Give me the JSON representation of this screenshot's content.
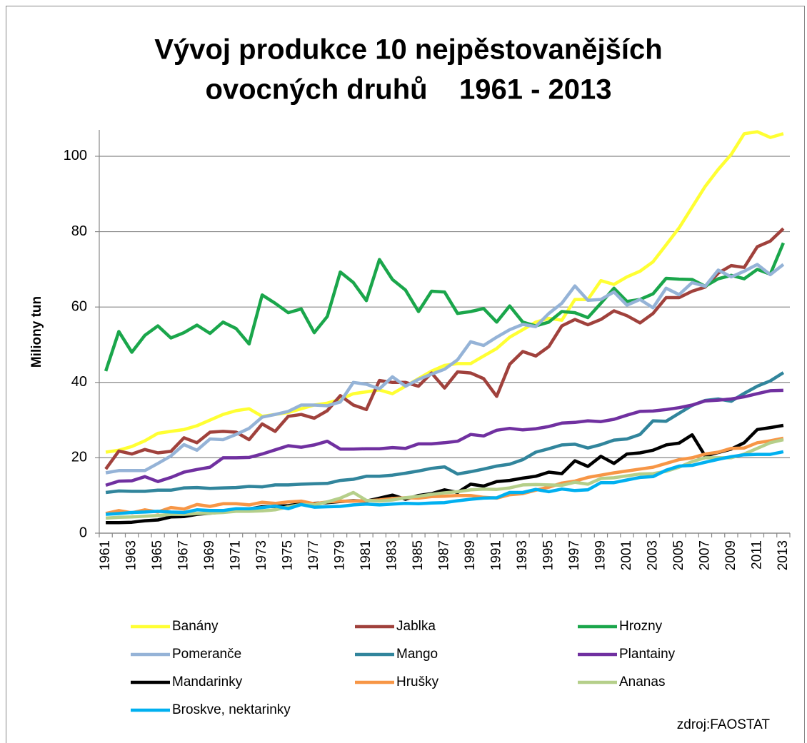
{
  "chart_data": {
    "type": "line",
    "title": [
      "Vývoj produkce 10 nejpěstovanějších",
      "ovocných druhů    1961 - 2013"
    ],
    "y_label": "Miliony tun",
    "source": "zdroj:FAOSTAT",
    "categories": [
      "1961",
      null,
      "1963",
      null,
      "1965",
      null,
      "1967",
      null,
      "1969",
      null,
      "1971",
      null,
      "1973",
      null,
      "1975",
      null,
      "1977",
      null,
      "1979",
      null,
      "1981",
      null,
      "1983",
      null,
      "1985",
      null,
      "1987",
      null,
      "1989",
      null,
      "1991",
      null,
      "1993",
      null,
      "1995",
      null,
      "1997",
      null,
      "1999",
      null,
      "2001",
      null,
      "2003",
      null,
      "2005",
      null,
      "2007",
      null,
      "2009",
      null,
      "2011",
      null,
      "2013"
    ],
    "ylim": [
      0,
      107
    ],
    "yticks": [
      0,
      20,
      40,
      60,
      80,
      100
    ],
    "grid": true,
    "series": [
      {
        "name": "Banány",
        "color": "#ffff33",
        "values": [
          21.5,
          22,
          23,
          24.5,
          26.5,
          27,
          27.5,
          28.5,
          30,
          31.5,
          32.5,
          33,
          31,
          31.5,
          32,
          33,
          34,
          34.5,
          35.5,
          37,
          37.5,
          38,
          37,
          39,
          41,
          43,
          44.5,
          45,
          45,
          47,
          49,
          52,
          54,
          56,
          57,
          56.5,
          62,
          62,
          67,
          66,
          68,
          69.5,
          72,
          76.5,
          81,
          86.5,
          92,
          96.5,
          100.5,
          106,
          106.5,
          105,
          106
        ]
      },
      {
        "name": "Jablka",
        "color": "#a0413c",
        "values": [
          17,
          21.8,
          21,
          22.2,
          21.3,
          21.7,
          25.3,
          24,
          26.8,
          27,
          26.8,
          24.8,
          29,
          27,
          31,
          31.5,
          30.5,
          32.5,
          36.5,
          34,
          32.8,
          40.5,
          40,
          40,
          39,
          42.5,
          38.5,
          42.8,
          42.5,
          41,
          36.3,
          44.8,
          48.2,
          47,
          49.5,
          55,
          56.7,
          55.3,
          56.7,
          59,
          57.7,
          55.8,
          58.3,
          62.5,
          62.5,
          64.2,
          65.3,
          69,
          71,
          70.5,
          76,
          77.5,
          80.8
        ]
      },
      {
        "name": "Hrozny",
        "color": "#1aa64b",
        "values": [
          43,
          53.5,
          48,
          52.5,
          55,
          51.8,
          53.2,
          55.2,
          53,
          56,
          54.3,
          50.2,
          63.2,
          61,
          58.5,
          59.5,
          53.2,
          57.5,
          69.3,
          66.5,
          61.7,
          72.6,
          67.3,
          64.5,
          58.8,
          64.2,
          64,
          58.3,
          58.8,
          59.6,
          56,
          60.3,
          56,
          55,
          56,
          58.8,
          58.5,
          57.2,
          61,
          65,
          61.5,
          62,
          63.5,
          67.6,
          67.4,
          67.3,
          65.5,
          67.5,
          68.4,
          67.5,
          70,
          68.7,
          77
        ]
      },
      {
        "name": "Pomeranče",
        "color": "#95b3d7",
        "values": [
          16,
          16.6,
          16.6,
          16.6,
          18.5,
          20.5,
          23.5,
          22,
          25,
          24.8,
          26.2,
          27.8,
          30.8,
          31.5,
          32.3,
          34,
          34,
          33.8,
          34.8,
          40,
          39.5,
          38.3,
          41.5,
          39,
          40.8,
          42.2,
          43.5,
          46,
          50.8,
          49.8,
          52,
          54,
          55.4,
          54.8,
          58.3,
          61,
          65.6,
          61.8,
          62,
          64,
          60.5,
          62,
          59.8,
          65,
          63.3,
          66.5,
          65.5,
          69.8,
          68,
          69.5,
          71.3,
          68.6,
          71.3
        ]
      },
      {
        "name": "Mango",
        "color": "#31859c",
        "values": [
          10.8,
          11.2,
          11.1,
          11.1,
          11.4,
          11.4,
          12,
          12.1,
          11.9,
          12,
          12.1,
          12.4,
          12.3,
          12.8,
          12.8,
          13,
          13.1,
          13.2,
          14,
          14.3,
          15.1,
          15.1,
          15.4,
          15.9,
          16.5,
          17.2,
          17.6,
          15.7,
          16.3,
          17,
          17.8,
          18.3,
          19.5,
          21.5,
          22.4,
          23.4,
          23.6,
          22.6,
          23.5,
          24.7,
          25,
          26.2,
          29.8,
          29.7,
          31.8,
          33.9,
          35.2,
          35.6,
          35,
          37.1,
          39,
          40.4,
          42.6
        ]
      },
      {
        "name": "Plantainy",
        "color": "#7030a0",
        "values": [
          12.7,
          13.8,
          13.9,
          15,
          13.7,
          14.8,
          16.2,
          16.9,
          17.5,
          20,
          20,
          20.1,
          21,
          22.1,
          23.2,
          22.8,
          23.4,
          24.4,
          22.3,
          22.3,
          22.4,
          22.4,
          22.7,
          22.5,
          23.7,
          23.7,
          24,
          24.4,
          26.2,
          25.8,
          27.3,
          27.8,
          27.4,
          27.7,
          28.3,
          29.2,
          29.4,
          29.8,
          29.6,
          30.2,
          31.3,
          32.3,
          32.4,
          32.8,
          33.3,
          34,
          35.1,
          35.3,
          35.6,
          36.2,
          37,
          37.8,
          37.9
        ]
      },
      {
        "name": "Mandarinky",
        "color": "#000000",
        "values": [
          2.8,
          2.8,
          2.9,
          3.3,
          3.5,
          4.3,
          4.4,
          5,
          5.3,
          5.6,
          6,
          6.4,
          7,
          7.1,
          7.3,
          7.8,
          7.9,
          8.1,
          8.4,
          8.6,
          8.5,
          9.3,
          10.1,
          9,
          10,
          10.5,
          11.5,
          10.8,
          13,
          12.5,
          13.7,
          14,
          14.6,
          15.1,
          16.2,
          15.8,
          19.2,
          17.7,
          20.4,
          18.5,
          21,
          21.3,
          22,
          23.4,
          23.9,
          26.1,
          20.5,
          21.4,
          22.3,
          24,
          27.5,
          28,
          28.6
        ]
      },
      {
        "name": "Hrušky",
        "color": "#f79646",
        "values": [
          5.2,
          6,
          5.4,
          6.2,
          5.6,
          6.8,
          6.4,
          7.6,
          7.1,
          7.8,
          7.8,
          7.5,
          8.2,
          7.9,
          8.3,
          8.5,
          7.8,
          8.3,
          8.5,
          8.5,
          8.6,
          8.8,
          9.2,
          9.4,
          9.3,
          9.7,
          9.8,
          10,
          10,
          9.5,
          9.3,
          10.2,
          10.5,
          11.4,
          12.2,
          13.3,
          13.8,
          14.8,
          15.4,
          16,
          16.5,
          17,
          17.5,
          18.5,
          19.5,
          20,
          21,
          21.5,
          22.5,
          22.6,
          24,
          24.5,
          25.2
        ]
      },
      {
        "name": "Ananas",
        "color": "#b5cf8a",
        "values": [
          4,
          4.2,
          4.3,
          4.5,
          4.7,
          5,
          5,
          5.2,
          5.3,
          5.5,
          5.8,
          5.8,
          5.9,
          6.2,
          7,
          7.6,
          7.5,
          8.3,
          9.3,
          10.8,
          8.7,
          8.5,
          8.8,
          9.4,
          9.8,
          10.3,
          10.7,
          11,
          11.5,
          11.7,
          11.6,
          12,
          12.8,
          12.9,
          12.8,
          12.7,
          13.5,
          13,
          14.5,
          14.7,
          15.2,
          15.7,
          15.8,
          16.4,
          17.5,
          19,
          20,
          20,
          20,
          21,
          22.5,
          24,
          24.8
        ]
      },
      {
        "name": "Broskve, nektarinky",
        "color": "#00b0f0",
        "values": [
          5,
          5.2,
          5.5,
          5.6,
          5.8,
          5.6,
          5.5,
          6.2,
          6,
          6,
          6.5,
          6.5,
          6.8,
          7.2,
          6.5,
          7.6,
          6.9,
          7,
          7.1,
          7.5,
          7.7,
          7.5,
          7.7,
          7.9,
          7.8,
          8,
          8.1,
          8.6,
          9,
          9.3,
          9.4,
          10.8,
          10.8,
          11.6,
          11,
          11.7,
          11.3,
          11.5,
          13.4,
          13.4,
          14.1,
          14.8,
          15,
          16.7,
          17.8,
          18,
          18.8,
          19.6,
          20.3,
          20.8,
          20.9,
          20.9,
          21.6
        ]
      }
    ]
  }
}
